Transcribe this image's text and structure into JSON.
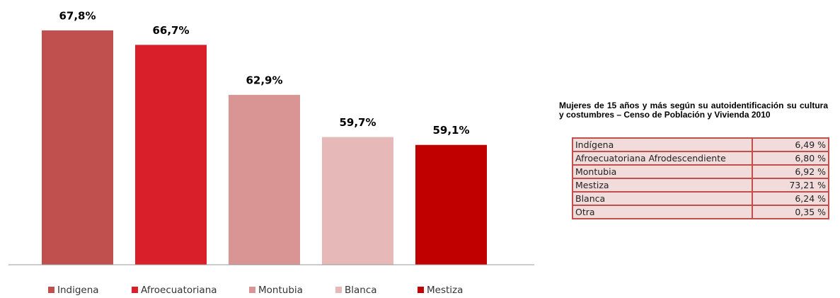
{
  "chart_data": {
    "type": "bar",
    "categories": [
      "Indigena",
      "Afroecuatoriana",
      "Montubia",
      "Blanca",
      "Mestiza"
    ],
    "values": [
      67.8,
      66.7,
      62.9,
      59.7,
      59.1
    ],
    "value_labels": [
      "67,8%",
      "66,7%",
      "62,9%",
      "59,7%",
      "59,1%"
    ],
    "colors": [
      "#c0504d",
      "#d91f2a",
      "#d99594",
      "#e6b9b8",
      "#c00000"
    ],
    "ylim": [
      50,
      70
    ],
    "legend": "bottom"
  },
  "table": {
    "title": "Mujeres de 15 años y más según su autoidentificación su cultura y costumbres – Censo de Población y Vivienda 2010",
    "rows": [
      [
        "Indígena",
        "6,49 %"
      ],
      [
        "Afroecuatoriana Afrodescendiente",
        "6,80 %"
      ],
      [
        "Montubia",
        "6,92 %"
      ],
      [
        "Mestiza",
        "73,21 %"
      ],
      [
        "Blanca",
        "6,24 %"
      ],
      [
        "Otra",
        "0,35 %"
      ]
    ]
  }
}
